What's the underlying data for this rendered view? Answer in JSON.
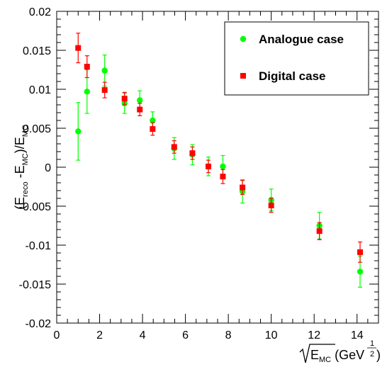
{
  "chart_data": {
    "type": "scatter",
    "xlim": [
      0,
      15
    ],
    "ylim": [
      -0.02,
      0.02
    ],
    "xticks": [
      0,
      2,
      4,
      6,
      8,
      10,
      12,
      14
    ],
    "xtick_labels": [
      "0",
      "2",
      "4",
      "6",
      "8",
      "10",
      "12",
      "14"
    ],
    "yticks": [
      -0.02,
      -0.015,
      -0.01,
      -0.005,
      0,
      0.005,
      0.01,
      0.015,
      0.02
    ],
    "ytick_labels": [
      "-0.02",
      "-0.015",
      "-0.01",
      "-0.005",
      "0",
      "0.005",
      "0.01",
      "0.015",
      "0.02"
    ],
    "ylabel": {
      "p1": "(E",
      "s1": "reco",
      "p2": " -E",
      "s2": "MC",
      "p3": ")/E",
      "s3": "MC"
    },
    "xlabel": {
      "root": "E",
      "root_sub": "MC",
      "unit": " (GeV",
      "exp": "1",
      "exp_den": "2",
      "close": ")"
    },
    "grid": false,
    "legend_position": "top-right",
    "series": [
      {
        "name": "Analogue case",
        "color": "#00ff00",
        "marker": "circle",
        "x": [
          1.0,
          1.414,
          2.236,
          3.162,
          3.873,
          4.472,
          5.477,
          6.325,
          7.071,
          7.746,
          8.66,
          10.0,
          12.247,
          14.142
        ],
        "y": [
          0.0046,
          0.0097,
          0.0124,
          0.0082,
          0.0086,
          0.006,
          0.0024,
          0.0016,
          0.0001,
          0.0001,
          -0.0031,
          -0.0042,
          -0.0075,
          -0.0134
        ],
        "err": [
          0.0037,
          0.0028,
          0.002,
          0.0013,
          0.0012,
          0.0011,
          0.0014,
          0.0013,
          0.0012,
          0.0014,
          0.0015,
          0.0014,
          0.0017,
          0.002
        ]
      },
      {
        "name": "Digital case",
        "color": "#ff0000",
        "marker": "square",
        "x": [
          1.0,
          1.414,
          2.236,
          3.162,
          3.873,
          4.472,
          5.477,
          6.325,
          7.071,
          7.746,
          8.66,
          10.0,
          12.247,
          14.142
        ],
        "y": [
          0.0153,
          0.0129,
          0.0099,
          0.0088,
          0.0074,
          0.0049,
          0.0026,
          0.0018,
          0.0001,
          -0.0012,
          -0.0026,
          -0.0049,
          -0.0082,
          -0.0109
        ],
        "err": [
          0.0019,
          0.0014,
          0.001,
          0.0008,
          0.0008,
          0.0008,
          0.0008,
          0.0008,
          0.0008,
          0.0009,
          0.0009,
          0.0009,
          0.0011,
          0.0013
        ]
      }
    ]
  }
}
